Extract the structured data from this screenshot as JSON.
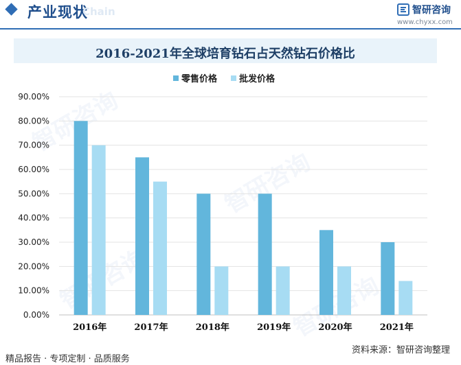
{
  "header": {
    "section_title": "产业现状",
    "section_subtitle": "Chain",
    "brand_name": "智研咨询",
    "brand_url": "www.chyxx.com"
  },
  "watermark_text": "智研咨询",
  "footer": {
    "left_text": "精品报告 · 专项定制 · 品质服务",
    "source_text": "资料来源：智研咨询整理"
  },
  "colors": {
    "retail": "#62b6dc",
    "wholesale": "#a7dcf3",
    "accent": "#2f6db5"
  },
  "chart_data": {
    "type": "bar",
    "title": "2016-2021年全球培育钻石占天然钻石价格比",
    "categories": [
      "2016年",
      "2017年",
      "2018年",
      "2019年",
      "2020年",
      "2021年"
    ],
    "series": [
      {
        "name": "零售价格",
        "values": [
          80,
          65,
          50,
          50,
          35,
          30
        ]
      },
      {
        "name": "批发价格",
        "values": [
          70,
          55,
          20,
          20,
          20,
          14
        ]
      }
    ],
    "yticks": [
      "0.00%",
      "10.00%",
      "20.00%",
      "30.00%",
      "40.00%",
      "50.00%",
      "60.00%",
      "70.00%",
      "80.00%",
      "90.00%"
    ],
    "ylim": [
      0,
      90
    ],
    "grid": true,
    "legend_position": "top-center"
  }
}
